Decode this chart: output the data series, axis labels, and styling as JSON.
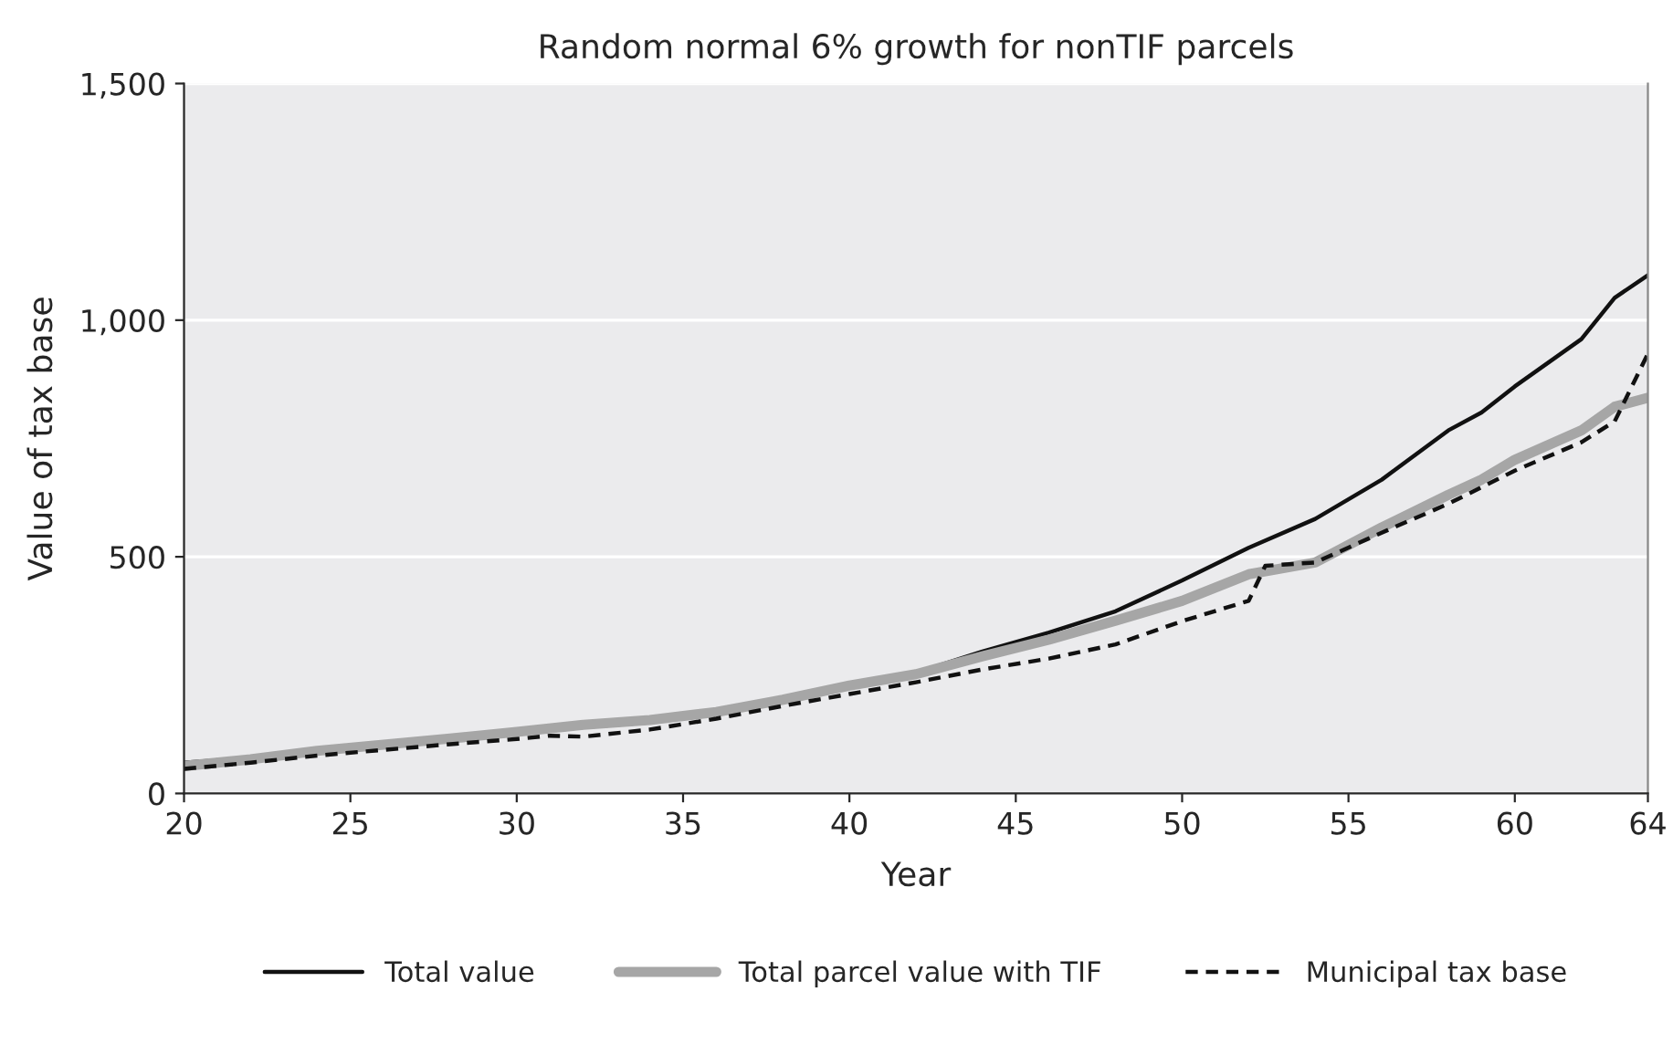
{
  "chart_data": {
    "type": "line",
    "title": "Random normal 6% growth for nonTIF parcels",
    "xlabel": "Year",
    "ylabel": "Value of tax base",
    "xlim": [
      20,
      64
    ],
    "xticks": [
      20,
      25,
      30,
      35,
      40,
      45,
      50,
      55,
      60,
      64
    ],
    "ylim": [
      0,
      1500
    ],
    "yticks": [
      0,
      {
        "value": 500,
        "label": "500"
      },
      {
        "value": 1000,
        "label": "1,000"
      },
      {
        "value": 1500,
        "label": "1,500"
      }
    ],
    "grid": "y",
    "legend": "bottom",
    "series": [
      {
        "name": "Total value",
        "color": "#111111",
        "line_style": "solid",
        "x": [
          20,
          22,
          24,
          26,
          28,
          30,
          32,
          34,
          36,
          38,
          40,
          42,
          44,
          46,
          48,
          50,
          52,
          54,
          56,
          58,
          59,
          60,
          62,
          63,
          64
        ],
        "values": [
          65,
          75,
          88,
          100,
          112,
          125,
          140,
          150,
          175,
          200,
          225,
          255,
          300,
          340,
          385,
          450,
          519,
          580,
          663,
          767,
          805,
          860,
          960,
          1047,
          1095
        ]
      },
      {
        "name": "Total parcel value with TIF",
        "color": "#a6a6a6",
        "line_style": "solid",
        "x": [
          20,
          22,
          24,
          26,
          28,
          30,
          32,
          34,
          36,
          38,
          40,
          42,
          44,
          46,
          48,
          50,
          52,
          54,
          56,
          58,
          59,
          60,
          62,
          63,
          64
        ],
        "values": [
          58,
          72,
          90,
          103,
          116,
          130,
          145,
          155,
          172,
          198,
          228,
          252,
          290,
          325,
          365,
          407,
          463,
          488,
          562,
          631,
          663,
          705,
          767,
          817,
          836
        ]
      },
      {
        "name": "Municipal tax base",
        "color": "#111111",
        "line_style": "dashed",
        "x": [
          20,
          22,
          24,
          26,
          28,
          30,
          31,
          32,
          34,
          36,
          38,
          40,
          42,
          44,
          46,
          48,
          50,
          52,
          52.5,
          54,
          56,
          58,
          60,
          62,
          63,
          64
        ],
        "values": [
          52,
          65,
          80,
          92,
          104,
          115,
          122,
          120,
          135,
          158,
          185,
          210,
          235,
          262,
          285,
          315,
          364,
          407,
          481,
          488,
          551,
          612,
          682,
          742,
          786,
          929
        ]
      }
    ]
  }
}
